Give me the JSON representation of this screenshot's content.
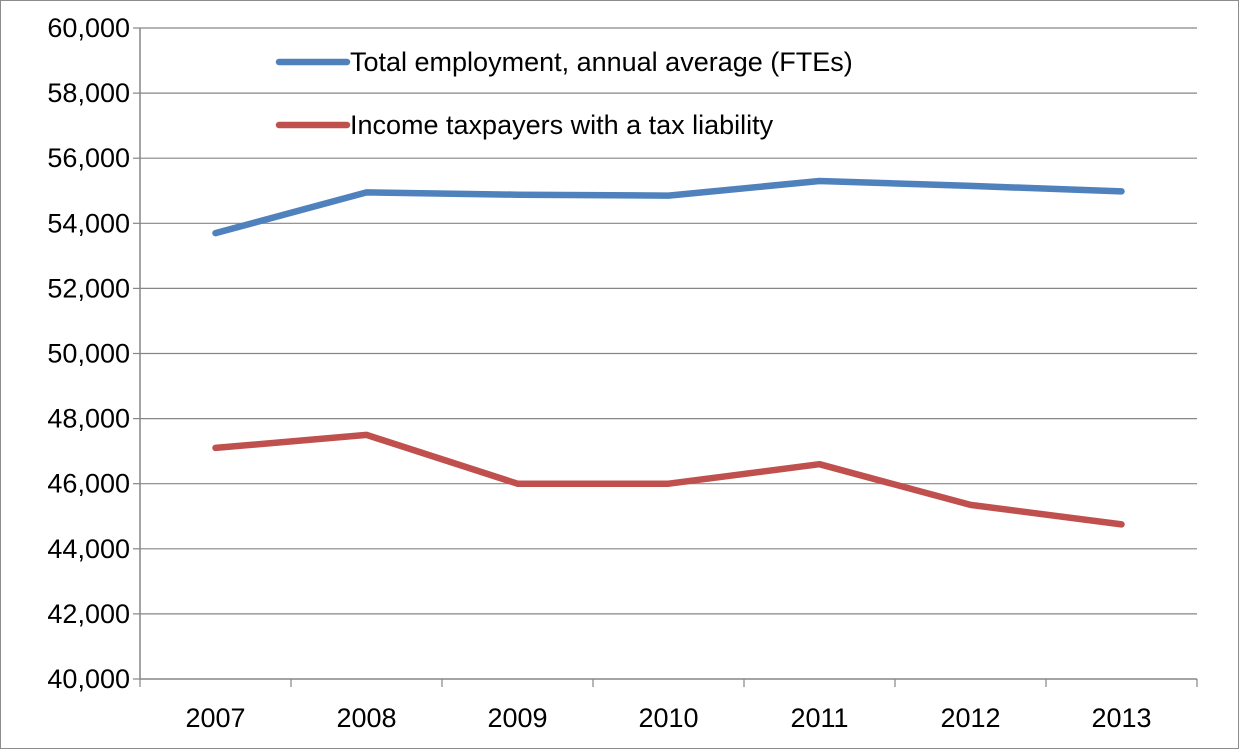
{
  "chart_data": {
    "type": "line",
    "title": "",
    "xlabel": "",
    "ylabel": "",
    "categories": [
      "2007",
      "2008",
      "2009",
      "2010",
      "2011",
      "2012",
      "2013"
    ],
    "ylim": [
      40000,
      60000
    ],
    "yticks": [
      40000,
      42000,
      44000,
      46000,
      48000,
      50000,
      52000,
      54000,
      56000,
      58000,
      60000
    ],
    "ytick_labels": [
      "40,000",
      "42,000",
      "44,000",
      "46,000",
      "48,000",
      "50,000",
      "52,000",
      "54,000",
      "56,000",
      "58,000",
      "60,000"
    ],
    "grid": "horizontal",
    "legend_position": "top-center",
    "series": [
      {
        "name": "Total employment, annual average (FTEs)",
        "color": "#4f81bd",
        "values": [
          53700,
          54950,
          54880,
          54850,
          55300,
          55150,
          54980
        ]
      },
      {
        "name": "Income taxpayers with a tax liability",
        "color": "#c0504d",
        "values": [
          47100,
          47500,
          46000,
          46000,
          46600,
          45350,
          44750
        ]
      }
    ]
  }
}
